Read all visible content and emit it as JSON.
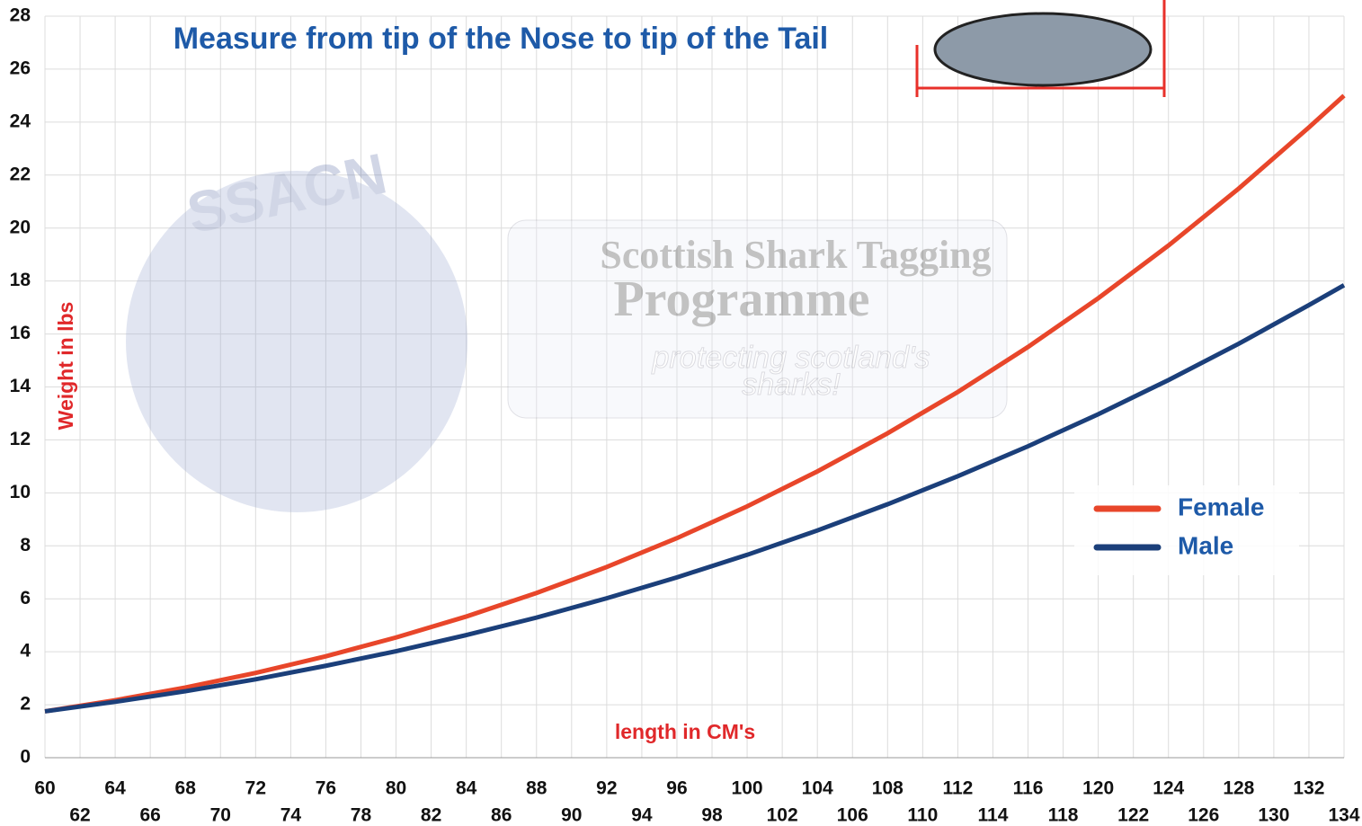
{
  "chart_data": {
    "type": "line",
    "subtitle": "Measure from tip of the Nose to tip of the Tail",
    "x_label": "length in CM's",
    "y_label": "Weight in lbs",
    "x": [
      60,
      64,
      68,
      72,
      76,
      80,
      84,
      88,
      92,
      96,
      100,
      104,
      108,
      112,
      116,
      120,
      124,
      128,
      132,
      134
    ],
    "series": [
      {
        "name": "Female",
        "color": "#e8462a",
        "values": [
          1.75,
          2.17,
          2.65,
          3.2,
          3.83,
          4.54,
          5.33,
          6.22,
          7.2,
          8.29,
          9.49,
          10.81,
          12.25,
          13.81,
          15.51,
          17.35,
          19.34,
          21.49,
          23.8,
          25.0
        ]
      },
      {
        "name": "Male",
        "color": "#1b3f7a",
        "values": [
          1.75,
          2.11,
          2.51,
          2.96,
          3.47,
          4.02,
          4.63,
          5.29,
          6.02,
          6.81,
          7.66,
          8.58,
          9.57,
          10.63,
          11.76,
          12.97,
          14.26,
          15.63,
          17.09,
          17.84
        ]
      }
    ],
    "xlim": [
      60,
      134
    ],
    "ylim": [
      0,
      28
    ],
    "xticks": [
      60,
      62,
      64,
      66,
      68,
      70,
      72,
      74,
      76,
      78,
      80,
      82,
      84,
      86,
      88,
      90,
      92,
      94,
      96,
      98,
      100,
      102,
      104,
      106,
      108,
      110,
      112,
      114,
      116,
      118,
      120,
      122,
      124,
      126,
      128,
      130,
      132,
      134
    ],
    "yticks": [
      0,
      2,
      4,
      6,
      8,
      10,
      12,
      14,
      16,
      18,
      20,
      22,
      24,
      26,
      28
    ],
    "grid": true,
    "legend": "right"
  },
  "watermark": {
    "logo": "SSACN",
    "line1": "Scottish Shark Tagging",
    "line2": "Programme",
    "tagline1": "protecting scotland's",
    "tagline2": "sharks!"
  }
}
